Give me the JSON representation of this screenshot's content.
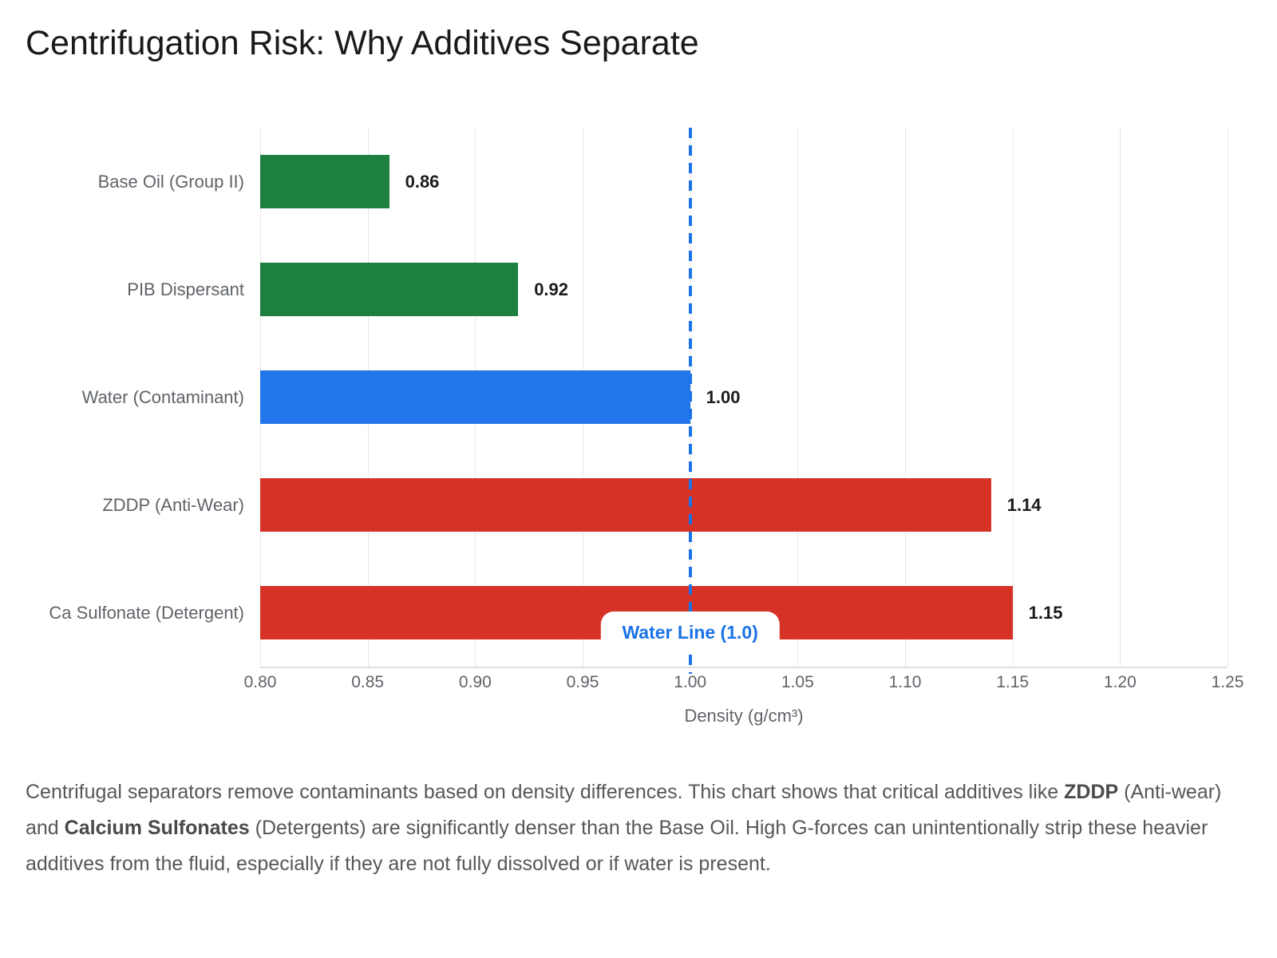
{
  "title": "Centrifugation Risk: Why Additives Separate",
  "chart_data": {
    "type": "bar",
    "orientation": "horizontal",
    "categories": [
      "Base Oil (Group II)",
      "PIB Dispersant",
      "Water (Contaminant)",
      "ZDDP (Anti-Wear)",
      "Ca Sulfonate (Detergent)"
    ],
    "values": [
      0.86,
      0.92,
      1.0,
      1.14,
      1.15
    ],
    "value_labels": [
      "0.86",
      "0.92",
      "1.00",
      "1.14",
      "1.15"
    ],
    "bar_colors": [
      "#1e8040",
      "#1e8040",
      "#2276e9",
      "#d63226",
      "#d63226"
    ],
    "xlabel": "Density (g/cm³)",
    "xlim": [
      0.8,
      1.25
    ],
    "x_ticks": [
      "0.80",
      "0.85",
      "0.90",
      "0.95",
      "1.00",
      "1.05",
      "1.10",
      "1.15",
      "1.20",
      "1.25"
    ],
    "grid": true,
    "legend": "none",
    "reference_line": {
      "value": 1.0,
      "label": "Water Line (1.0)",
      "color": "#1a73e8",
      "style": "dashed"
    }
  },
  "colors": {
    "grid": "#e8e8e8",
    "axis_line": "#e0e0e0",
    "tick_label": "#5f6368",
    "value_label": "#1b1b1b",
    "title": "#1a1a1a",
    "caption": "#575757",
    "reference_blue": "#1a73e8"
  },
  "caption": {
    "segments": [
      {
        "text": "Centrifugal separators remove contaminants based on density differences. This chart shows that critical additives like ",
        "bold": false
      },
      {
        "text": "ZDDP",
        "bold": true
      },
      {
        "text": " (Anti-wear) and ",
        "bold": false
      },
      {
        "text": "Calcium Sulfonates",
        "bold": true
      },
      {
        "text": " (Detergents) are significantly denser than the Base Oil. High G-forces can unintentionally strip these heavier additives from the fluid, especially if they are not fully dissolved or if water is present.",
        "bold": false
      }
    ]
  }
}
